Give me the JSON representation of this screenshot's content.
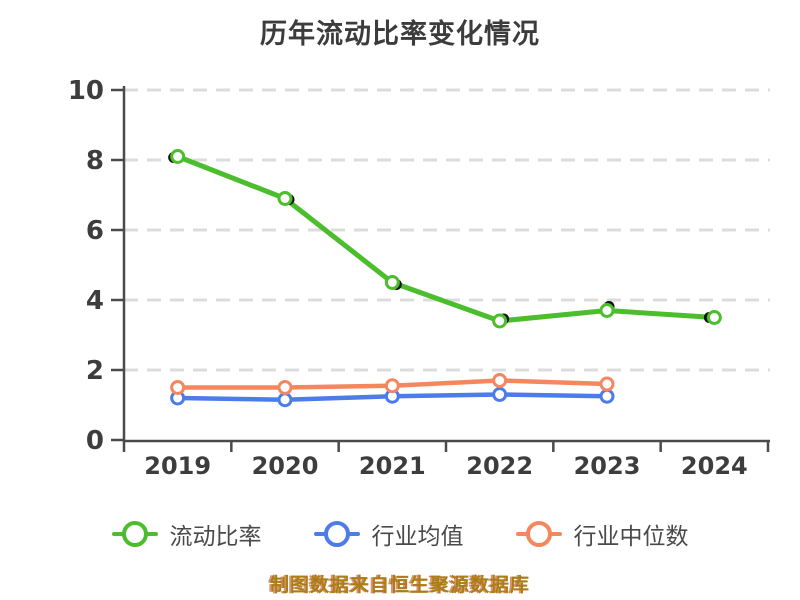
{
  "title": "历年流动比率变化情况",
  "caption": "制图数据来自恒生聚源数据库",
  "colors": {
    "current_ratio": "#4cbe2d",
    "industry_avg": "#4d7be8",
    "industry_median": "#f5875f",
    "axis": "#4a4a4a",
    "grid": "#dcdcdc",
    "tick_text": "#3d3d3d",
    "caption_text": "#ab7d14"
  },
  "chart_data": {
    "type": "line",
    "title": "历年流动比率变化情况",
    "categories": [
      "2019",
      "2020",
      "2021",
      "2022",
      "2023",
      "2024"
    ],
    "series": [
      {
        "name": "流动比率",
        "color_key": "current_ratio",
        "values": [
          8.1,
          6.9,
          4.5,
          3.4,
          3.7,
          3.5
        ]
      },
      {
        "name": "行业均值",
        "color_key": "industry_avg",
        "values": [
          1.2,
          1.15,
          1.25,
          1.3,
          1.25,
          null
        ]
      },
      {
        "name": "行业中位数",
        "color_key": "industry_median",
        "values": [
          1.5,
          1.5,
          1.55,
          1.7,
          1.6,
          null
        ]
      }
    ],
    "ylim": [
      0,
      10
    ],
    "yticks": [
      0,
      2,
      4,
      6,
      8,
      10
    ],
    "grid": "dashed-horizontal",
    "legend_position": "bottom",
    "xlabel": "",
    "ylabel": ""
  }
}
